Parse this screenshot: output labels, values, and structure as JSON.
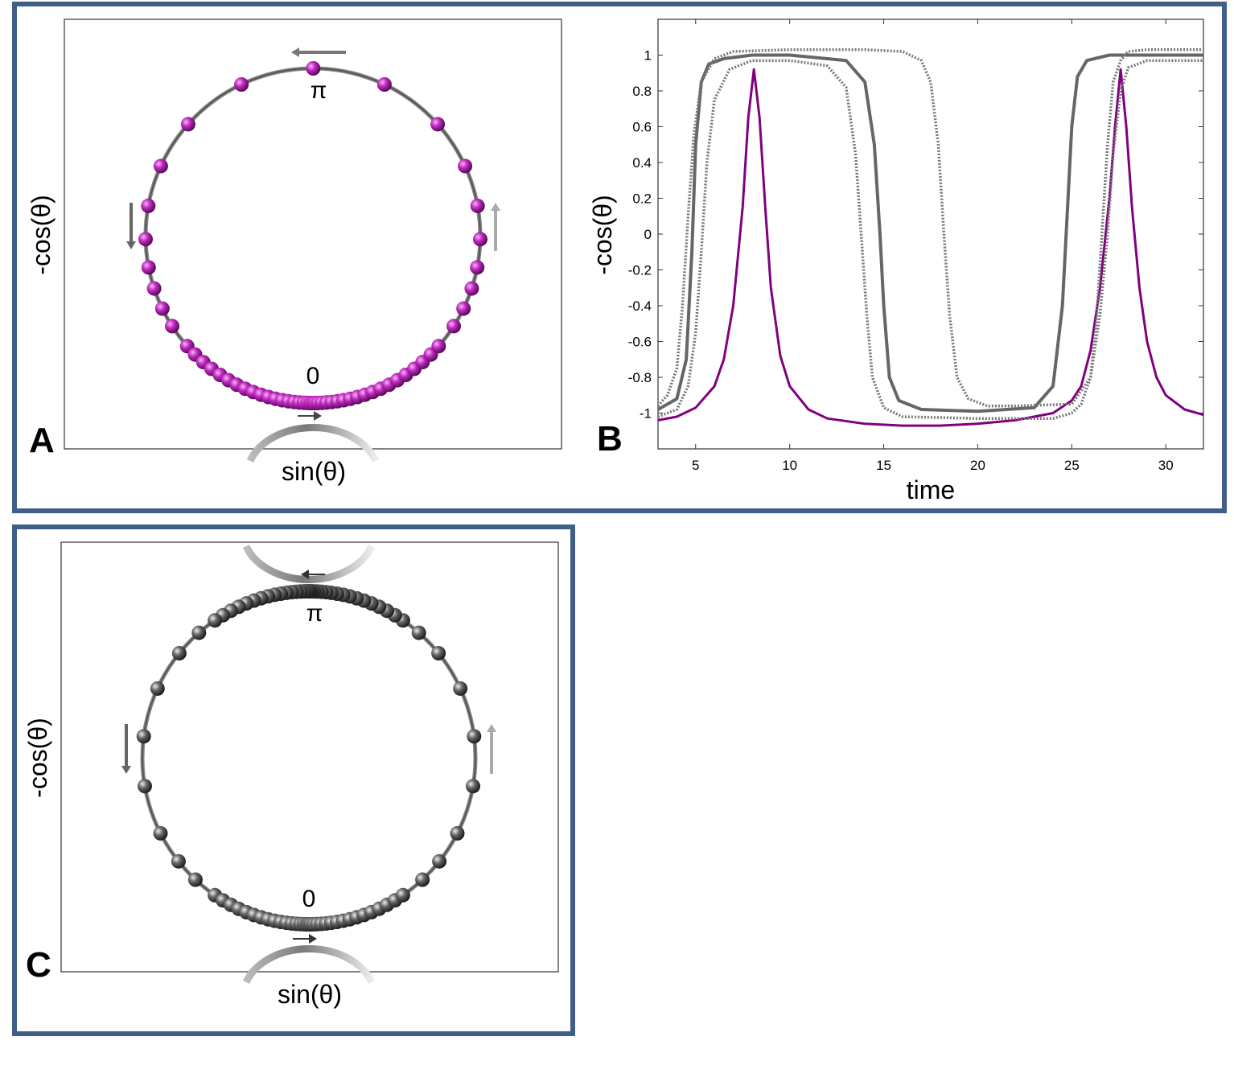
{
  "panels": {
    "A": {
      "letter": "A",
      "xlabel": "sin(θ)",
      "ylabel": "-cos(θ)",
      "label_top": "π",
      "label_bottom": "0",
      "bead_color": "#b51fb5",
      "ring_color": "#666666"
    },
    "B": {
      "letter": "B",
      "xlabel": "time",
      "ylabel": "-cos(θ)"
    },
    "C": {
      "letter": "C",
      "xlabel": "sin(θ)",
      "ylabel": "-cos(θ)",
      "label_top": "π",
      "label_bottom": "0",
      "bead_color": "#555555",
      "ring_color": "#666666"
    }
  },
  "chart_data": [
    {
      "panel": "B",
      "type": "line",
      "xlabel": "time",
      "ylabel": "-cos(θ)",
      "xlim": [
        3,
        32
      ],
      "ylim": [
        -1.2,
        1.2
      ],
      "xticks": [
        5,
        10,
        15,
        20,
        25,
        30
      ],
      "yticks": [
        1,
        0.8,
        0.6,
        0.4,
        0.2,
        0,
        -0.2,
        -0.4,
        -0.6,
        -0.8,
        -1
      ],
      "grid": false,
      "series": [
        {
          "style": "solid",
          "color": "#800080",
          "width": 3,
          "x": [
            3,
            4,
            5,
            6,
            6.5,
            7,
            7.5,
            7.8,
            8.1,
            8.4,
            8.7,
            9,
            9.5,
            10,
            11,
            12,
            14,
            16,
            18,
            20,
            22,
            24,
            25,
            25.5,
            26,
            26.5,
            27,
            27.3,
            27.6,
            27.9,
            28.2,
            28.6,
            29,
            29.5,
            30,
            31,
            32
          ],
          "y": [
            -1.04,
            -1.02,
            -0.97,
            -0.85,
            -0.7,
            -0.4,
            0.15,
            0.65,
            0.92,
            0.65,
            0.15,
            -0.3,
            -0.68,
            -0.85,
            -0.98,
            -1.03,
            -1.06,
            -1.07,
            -1.07,
            -1.06,
            -1.04,
            -1.0,
            -0.93,
            -0.85,
            -0.65,
            -0.3,
            0.2,
            0.6,
            0.92,
            0.6,
            0.15,
            -0.3,
            -0.6,
            -0.8,
            -0.9,
            -0.98,
            -1.01
          ]
        },
        {
          "style": "solid",
          "color": "#666666",
          "width": 4,
          "x": [
            3,
            4,
            4.5,
            4.8,
            5,
            5.3,
            5.7,
            6.5,
            8,
            10,
            13,
            14,
            14.5,
            14.8,
            15,
            15.3,
            15.8,
            17,
            20,
            23,
            24,
            24.5,
            24.8,
            25,
            25.3,
            25.8,
            27,
            30,
            32
          ],
          "y": [
            -0.98,
            -0.92,
            -0.7,
            -0.1,
            0.5,
            0.85,
            0.95,
            0.98,
            1.0,
            1.0,
            0.97,
            0.85,
            0.5,
            0.0,
            -0.4,
            -0.8,
            -0.93,
            -0.98,
            -0.99,
            -0.97,
            -0.85,
            -0.4,
            0.2,
            0.6,
            0.88,
            0.97,
            1.0,
            1.0,
            1.0
          ]
        },
        {
          "style": "dotted",
          "color": "#777777",
          "width": 3.5,
          "x": [
            3,
            4,
            4.6,
            5,
            5.3,
            5.6,
            6,
            6.8,
            8,
            10,
            12,
            13,
            13.5,
            13.8,
            14.1,
            14.4,
            15,
            16,
            20,
            24,
            25,
            25.5,
            26,
            26.5,
            26.9,
            27.2,
            27.6,
            28,
            29,
            30,
            32
          ],
          "y": [
            -1.02,
            -0.98,
            -0.85,
            -0.55,
            -0.1,
            0.4,
            0.75,
            0.92,
            0.97,
            0.97,
            0.94,
            0.82,
            0.45,
            0.0,
            -0.45,
            -0.8,
            -0.97,
            -1.02,
            -1.03,
            -1.03,
            -1.0,
            -0.95,
            -0.8,
            -0.45,
            0.0,
            0.45,
            0.8,
            0.93,
            0.97,
            0.97,
            0.97
          ]
        },
        {
          "style": "dotted",
          "color": "#777777",
          "width": 3.5,
          "x": [
            3,
            3.5,
            4,
            4.3,
            4.6,
            4.9,
            5.3,
            6,
            7,
            10,
            14,
            16,
            17,
            17.5,
            17.9,
            18.2,
            18.5,
            18.9,
            19.5,
            20.5,
            22,
            25,
            26,
            26.3,
            26.6,
            26.9,
            27.2,
            27.6,
            28,
            29,
            32
          ],
          "y": [
            -0.96,
            -0.9,
            -0.75,
            -0.4,
            0.1,
            0.55,
            0.85,
            0.98,
            1.02,
            1.03,
            1.03,
            1.02,
            0.97,
            0.85,
            0.5,
            0.0,
            -0.45,
            -0.8,
            -0.92,
            -0.96,
            -0.96,
            -0.95,
            -0.8,
            -0.5,
            0.0,
            0.5,
            0.85,
            0.97,
            1.02,
            1.03,
            1.03
          ]
        }
      ]
    }
  ]
}
